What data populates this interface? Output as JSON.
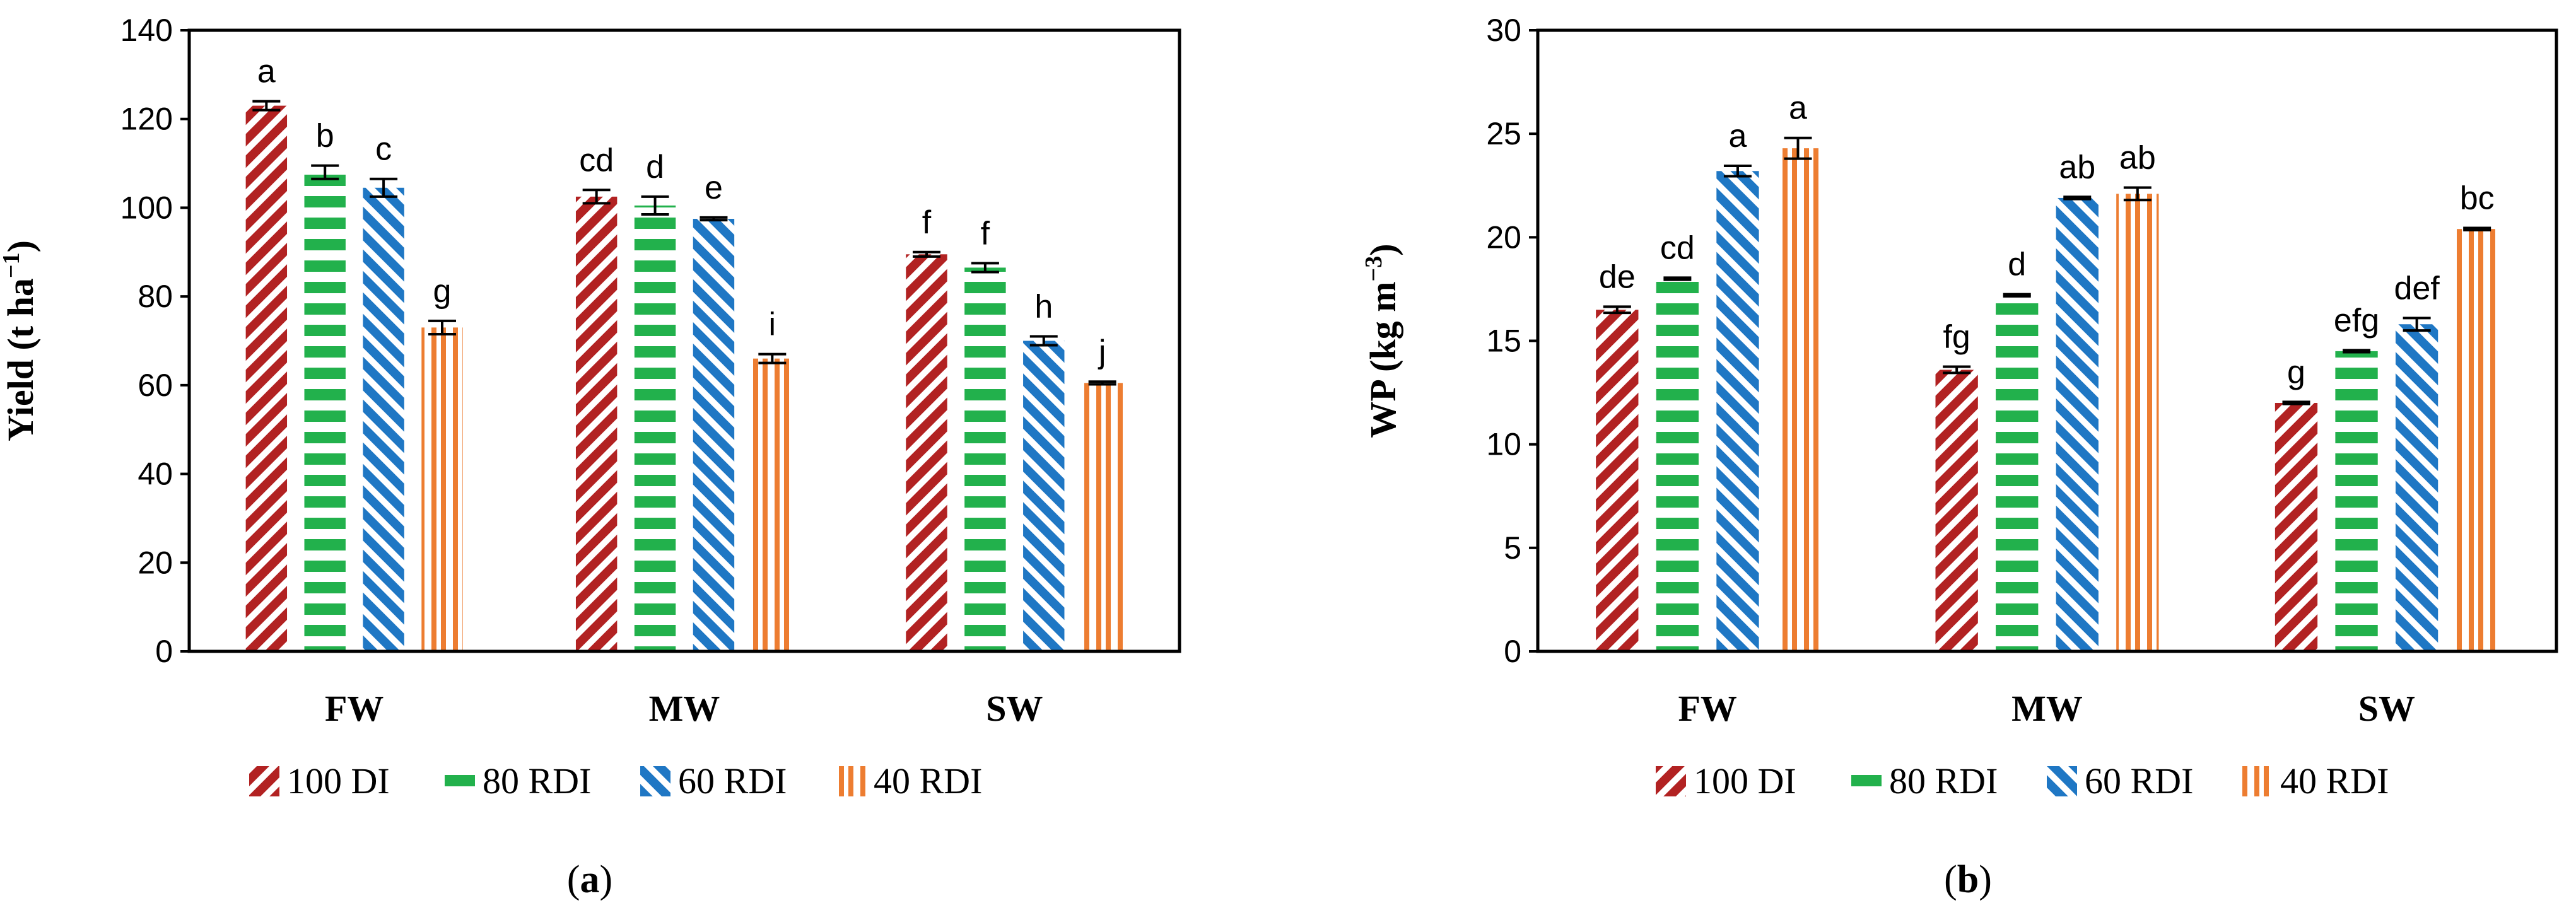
{
  "series_info": [
    {
      "name": "100 DI",
      "color": "#b22222",
      "pattern": "diag-up"
    },
    {
      "name": "80 RDI",
      "color": "#22b14c",
      "pattern": "horizontal"
    },
    {
      "name": "60  RDI",
      "color": "#1f77c4",
      "pattern": "diag-down"
    },
    {
      "name": "40  RDI",
      "color": "#ed7d31",
      "pattern": "vertical"
    }
  ],
  "chart_data": [
    {
      "type": "bar",
      "panel_label": {
        "open": "(",
        "letter": "a",
        "close": ")"
      },
      "ylabel": {
        "main": "Yield (t ha",
        "sup": "−1",
        "close": ")"
      },
      "categories": [
        "FW",
        "MW",
        "SW"
      ],
      "ylim": [
        0,
        140
      ],
      "yticks": [
        0,
        20,
        40,
        60,
        80,
        100,
        120,
        140
      ],
      "grid": false,
      "legend_position": "bottom",
      "series": [
        {
          "name": "100 DI",
          "values": [
            123,
            102.5,
            89.5
          ],
          "errors": [
            1,
            1.5,
            0.5
          ],
          "letters": [
            "a",
            "cd",
            "f"
          ]
        },
        {
          "name": "80 RDI",
          "values": [
            108,
            100.5,
            86.5
          ],
          "errors": [
            1.5,
            2,
            1
          ],
          "letters": [
            "b",
            "d",
            "f"
          ]
        },
        {
          "name": "60  RDI",
          "values": [
            104.5,
            97.5,
            70
          ],
          "errors": [
            2,
            0.3,
            1
          ],
          "letters": [
            "c",
            "e",
            "h"
          ]
        },
        {
          "name": "40  RDI",
          "values": [
            73,
            66,
            60.5
          ],
          "errors": [
            1.5,
            1,
            0.3
          ],
          "letters": [
            "g",
            "i",
            "j"
          ]
        }
      ]
    },
    {
      "type": "bar",
      "panel_label": {
        "open": "(",
        "letter": "b",
        "close": ")"
      },
      "ylabel": {
        "main": "WP (kg m",
        "sup": "−3",
        "close": ")"
      },
      "categories": [
        "FW",
        "MW",
        "SW"
      ],
      "ylim": [
        0,
        30
      ],
      "yticks": [
        0,
        5,
        10,
        15,
        20,
        25,
        30
      ],
      "grid": false,
      "legend_position": "bottom",
      "series": [
        {
          "name": "100 DI",
          "values": [
            16.5,
            13.6,
            12
          ],
          "errors": [
            0.15,
            0.15,
            0.05
          ],
          "letters": [
            "de",
            "fg",
            "g"
          ]
        },
        {
          "name": "80 RDI",
          "values": [
            18,
            17.2,
            14.5
          ],
          "errors": [
            0.05,
            0.05,
            0.05
          ],
          "letters": [
            "cd",
            "d",
            "efg"
          ]
        },
        {
          "name": "60  RDI",
          "values": [
            23.2,
            21.9,
            15.8
          ],
          "errors": [
            0.25,
            0.05,
            0.3
          ],
          "letters": [
            "a",
            "ab",
            "def"
          ]
        },
        {
          "name": "40  RDI",
          "values": [
            24.3,
            22.1,
            20.4
          ],
          "errors": [
            0.5,
            0.3,
            0.05
          ],
          "letters": [
            "a",
            "ab",
            "bc"
          ]
        }
      ]
    }
  ]
}
